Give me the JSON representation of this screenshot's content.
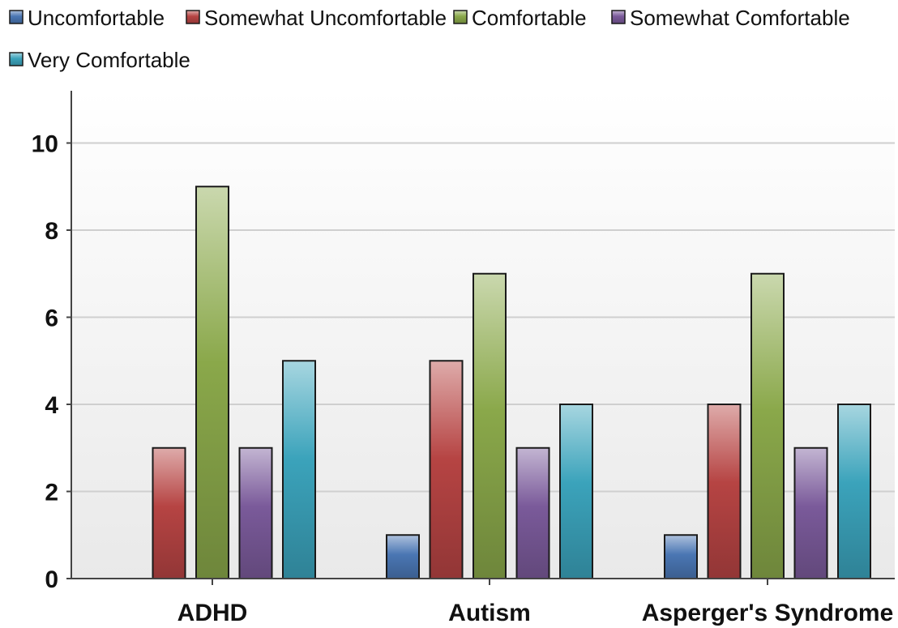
{
  "chart_data": {
    "type": "bar",
    "categories": [
      "ADHD",
      "Autism",
      "Asperger's Syndrome"
    ],
    "series": [
      {
        "name": "Uncomfortable",
        "values": [
          0,
          1,
          1
        ],
        "color": "#4a76b3"
      },
      {
        "name": "Somewhat Uncomfortable",
        "values": [
          3,
          5,
          4
        ],
        "color": "#b64443"
      },
      {
        "name": "Comfortable",
        "values": [
          9,
          7,
          7
        ],
        "color": "#8aa84a"
      },
      {
        "name": "Somewhat Comfortable",
        "values": [
          3,
          3,
          3
        ],
        "color": "#7a5a9a"
      },
      {
        "name": "Very Comfortable",
        "values": [
          5,
          4,
          4
        ],
        "color": "#3ba3bb"
      }
    ],
    "yticks": [
      0,
      2,
      4,
      6,
      8,
      10
    ],
    "ylim": [
      0,
      11.2
    ],
    "grid": true,
    "legend_position": "top-left",
    "title": "",
    "xlabel": "",
    "ylabel": ""
  }
}
